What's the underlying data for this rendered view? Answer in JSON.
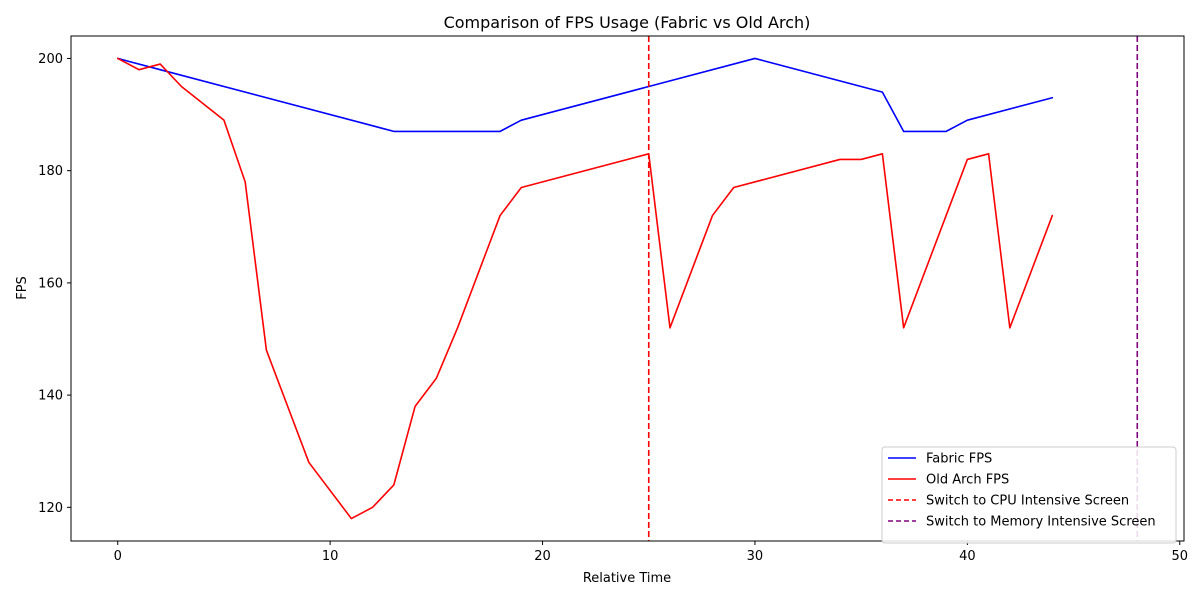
{
  "chart_data": {
    "type": "line",
    "title": "Comparison of FPS Usage (Fabric vs Old Arch)",
    "xlabel": "Relative Time",
    "ylabel": "FPS",
    "xlim": [
      -2.2,
      50.2
    ],
    "ylim": [
      114,
      204
    ],
    "xticks": [
      0,
      10,
      20,
      30,
      40,
      50
    ],
    "yticks": [
      120,
      140,
      160,
      180,
      200
    ],
    "grid": false,
    "legend_position": "lower right",
    "series": [
      {
        "name": "Fabric FPS",
        "color": "#0000ff",
        "style": "solid",
        "x": [
          0,
          2,
          13,
          18,
          19,
          25,
          30,
          36,
          37,
          39,
          40,
          44
        ],
        "y": [
          200,
          198,
          187,
          187,
          189,
          195,
          200,
          194,
          187,
          187,
          189,
          193
        ]
      },
      {
        "name": "Old Arch FPS",
        "color": "#ff0000",
        "style": "solid",
        "x": [
          0,
          1,
          2,
          3,
          5,
          6,
          7,
          9,
          11,
          12,
          13,
          14,
          15,
          16,
          18,
          19,
          25,
          26,
          28,
          29,
          34,
          35,
          36,
          37,
          40,
          41,
          42,
          44
        ],
        "y": [
          200,
          198,
          199,
          195,
          189,
          178,
          148,
          128,
          118,
          120,
          124,
          138,
          143,
          152,
          172,
          177,
          183,
          152,
          172,
          177,
          182,
          182,
          183,
          152,
          182,
          183,
          152,
          172
        ]
      }
    ],
    "vlines": [
      {
        "name": "Switch to CPU Intensive Screen",
        "x": 25,
        "color": "#ff0000",
        "style": "dashed"
      },
      {
        "name": "Switch to Memory Intensive Screen",
        "x": 48,
        "color": "#800080",
        "style": "dashed"
      }
    ]
  }
}
